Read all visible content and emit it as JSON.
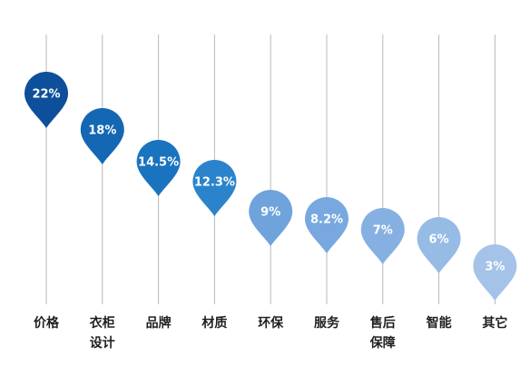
{
  "chart_data": {
    "type": "bar",
    "categories": [
      "价格",
      "衣柜\n设计",
      "品牌",
      "材质",
      "环保",
      "服务",
      "售后\n保障",
      "智能",
      "其它"
    ],
    "values": [
      22,
      18,
      14.5,
      12.3,
      9,
      8.2,
      7,
      6,
      3
    ],
    "labels": [
      "22%",
      "18%",
      "14.5%",
      "12.3%",
      "9%",
      "8.2%",
      "7%",
      "6%",
      "3%"
    ],
    "colors": [
      "#0d4f9a",
      "#1467b3",
      "#1a73bf",
      "#2b84cb",
      "#6fa3dc",
      "#78a8df",
      "#86b0e1",
      "#96bbe5",
      "#a5c3e8"
    ],
    "ylim": [
      0,
      22
    ],
    "grid": false
  }
}
